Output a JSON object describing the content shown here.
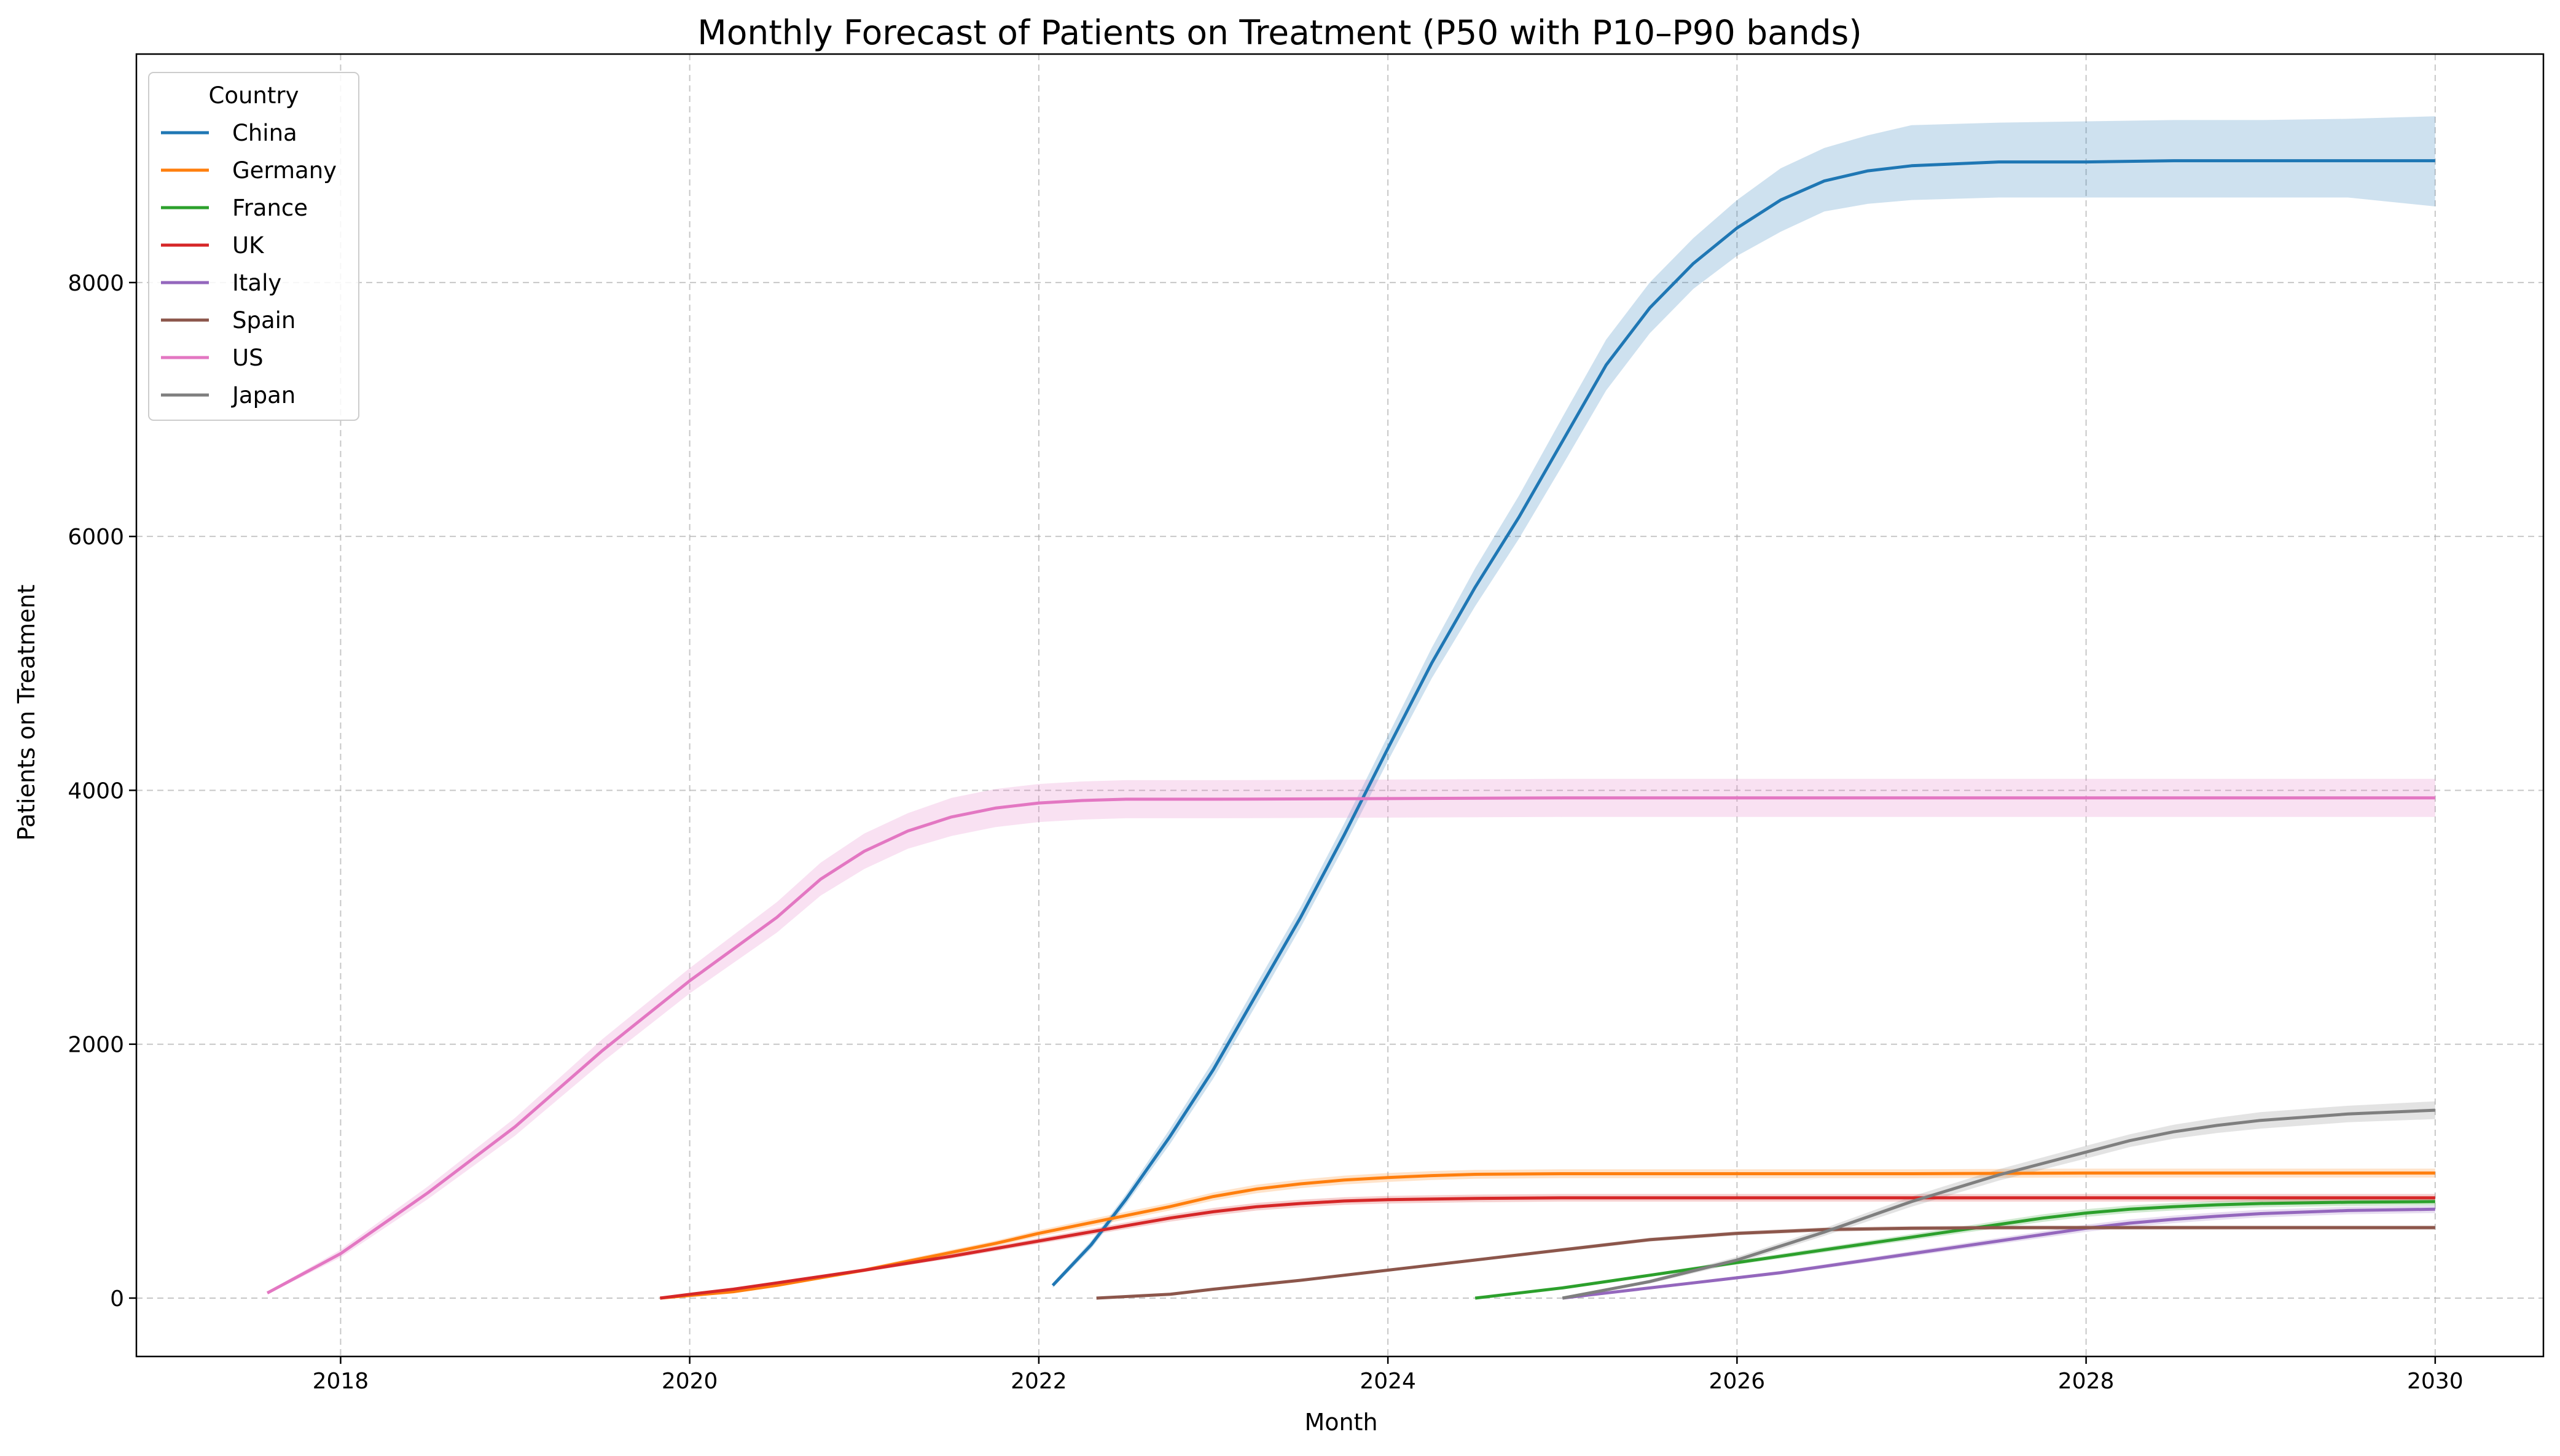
{
  "chart_data": {
    "type": "line",
    "title": "Monthly Forecast of Patients on Treatment (P50 with P10–P90 bands)",
    "xlabel": "Month",
    "ylabel": "Patients on Treatment",
    "xlim": [
      2016.83,
      2030.62
    ],
    "ylim": [
      -460,
      9800
    ],
    "x_ticks": [
      2018,
      2020,
      2022,
      2024,
      2026,
      2028,
      2030
    ],
    "x_tick_labels": [
      "2018",
      "2020",
      "2022",
      "2024",
      "2026",
      "2028",
      "2030"
    ],
    "y_ticks": [
      0,
      2000,
      4000,
      6000,
      8000
    ],
    "y_tick_labels": [
      "0",
      "2000",
      "4000",
      "6000",
      "8000"
    ],
    "grid": true,
    "legend": {
      "title": "Country",
      "placement": "top-left"
    },
    "series": [
      {
        "name": "China",
        "color": "#1f77b4",
        "x": [
          2022.08,
          2022.3,
          2022.5,
          2022.75,
          2023.0,
          2023.25,
          2023.5,
          2023.75,
          2024.0,
          2024.25,
          2024.5,
          2024.75,
          2025.0,
          2025.25,
          2025.5,
          2025.75,
          2026.0,
          2026.25,
          2026.5,
          2026.75,
          2027.0,
          2027.5,
          2028.0,
          2028.5,
          2029.0,
          2029.5,
          2030.0
        ],
        "p50": [
          100,
          420,
          780,
          1270,
          1800,
          2400,
          3000,
          3650,
          4330,
          5000,
          5600,
          6150,
          6750,
          7350,
          7800,
          8150,
          8430,
          8650,
          8800,
          8880,
          8920,
          8950,
          8950,
          8960,
          8960,
          8960,
          8960
        ],
        "p10": [
          80,
          390,
          740,
          1210,
          1730,
          2320,
          2920,
          3560,
          4230,
          4880,
          5450,
          5980,
          6560,
          7150,
          7600,
          7950,
          8210,
          8400,
          8560,
          8620,
          8650,
          8670,
          8670,
          8670,
          8670,
          8670,
          8600
        ],
        "p90": [
          120,
          450,
          820,
          1330,
          1870,
          2480,
          3080,
          3740,
          4430,
          5120,
          5750,
          6320,
          6940,
          7550,
          8000,
          8350,
          8650,
          8900,
          9060,
          9160,
          9240,
          9260,
          9270,
          9280,
          9280,
          9290,
          9310
        ]
      },
      {
        "name": "Germany",
        "color": "#ff7f0e",
        "x": [
          2019.83,
          2020.0,
          2020.25,
          2020.5,
          2020.75,
          2021.0,
          2021.25,
          2021.5,
          2021.75,
          2022.0,
          2022.25,
          2022.5,
          2022.75,
          2023.0,
          2023.25,
          2023.5,
          2023.75,
          2024.0,
          2024.25,
          2024.5,
          2025.0,
          2026.0,
          2027.0,
          2028.0,
          2029.0,
          2030.0
        ],
        "p50": [
          0,
          20,
          50,
          100,
          160,
          220,
          290,
          360,
          430,
          510,
          580,
          650,
          720,
          800,
          860,
          900,
          930,
          950,
          965,
          975,
          980,
          980,
          980,
          985,
          985,
          985
        ],
        "p10": [
          0,
          15,
          42,
          90,
          148,
          205,
          272,
          340,
          408,
          485,
          552,
          620,
          690,
          768,
          826,
          866,
          895,
          915,
          930,
          940,
          945,
          945,
          945,
          950,
          950,
          950
        ],
        "p90": [
          0,
          25,
          58,
          110,
          172,
          235,
          308,
          380,
          452,
          535,
          608,
          680,
          750,
          832,
          894,
          934,
          965,
          985,
          1000,
          1010,
          1015,
          1015,
          1015,
          1020,
          1020,
          1020
        ]
      },
      {
        "name": "France",
        "color": "#2ca02c",
        "x": [
          2024.5,
          2024.75,
          2025.0,
          2025.25,
          2025.5,
          2025.75,
          2026.0,
          2026.25,
          2026.5,
          2026.75,
          2027.0,
          2027.25,
          2027.5,
          2027.75,
          2028.0,
          2028.25,
          2028.5,
          2028.75,
          2029.0,
          2029.5,
          2030.0
        ],
        "p50": [
          0,
          40,
          80,
          130,
          180,
          230,
          280,
          330,
          380,
          430,
          480,
          530,
          580,
          630,
          670,
          700,
          720,
          735,
          745,
          755,
          760
        ],
        "p10": [
          0,
          34,
          72,
          120,
          168,
          216,
          264,
          312,
          360,
          408,
          456,
          504,
          552,
          600,
          640,
          670,
          690,
          705,
          715,
          725,
          730
        ],
        "p90": [
          0,
          46,
          88,
          140,
          192,
          244,
          296,
          348,
          400,
          452,
          504,
          556,
          608,
          660,
          700,
          730,
          750,
          765,
          775,
          785,
          790
        ]
      },
      {
        "name": "UK",
        "color": "#d62728",
        "x": [
          2019.83,
          2020.0,
          2020.25,
          2020.5,
          2020.75,
          2021.0,
          2021.25,
          2021.5,
          2021.75,
          2022.0,
          2022.25,
          2022.5,
          2022.75,
          2023.0,
          2023.25,
          2023.5,
          2023.75,
          2024.0,
          2024.5,
          2025.0,
          2026.0,
          2027.0,
          2028.0,
          2029.0,
          2030.0
        ],
        "p50": [
          0,
          30,
          70,
          120,
          170,
          220,
          275,
          330,
          390,
          450,
          510,
          570,
          630,
          680,
          720,
          745,
          765,
          775,
          785,
          790,
          790,
          790,
          790,
          790,
          790
        ],
        "p10": [
          0,
          25,
          62,
          110,
          158,
          206,
          259,
          312,
          370,
          428,
          486,
          544,
          602,
          650,
          690,
          715,
          735,
          745,
          755,
          760,
          760,
          760,
          760,
          760,
          760
        ],
        "p90": [
          0,
          35,
          78,
          130,
          182,
          234,
          291,
          348,
          410,
          472,
          534,
          596,
          658,
          710,
          750,
          775,
          795,
          805,
          815,
          820,
          820,
          820,
          820,
          820,
          820
        ]
      },
      {
        "name": "Italy",
        "color": "#9467bd",
        "x": [
          2025.0,
          2025.25,
          2025.5,
          2025.75,
          2026.0,
          2026.25,
          2026.5,
          2026.75,
          2027.0,
          2027.25,
          2027.5,
          2027.75,
          2028.0,
          2028.25,
          2028.5,
          2028.75,
          2029.0,
          2029.5,
          2030.0
        ],
        "p50": [
          0,
          40,
          80,
          120,
          160,
          200,
          250,
          300,
          350,
          400,
          450,
          500,
          550,
          590,
          620,
          645,
          665,
          690,
          700
        ],
        "p10": [
          0,
          35,
          72,
          110,
          148,
          186,
          234,
          282,
          330,
          378,
          426,
          474,
          522,
          560,
          590,
          615,
          635,
          660,
          670
        ],
        "p90": [
          0,
          45,
          88,
          130,
          172,
          214,
          266,
          318,
          370,
          422,
          474,
          526,
          578,
          620,
          650,
          675,
          695,
          720,
          730
        ]
      },
      {
        "name": "Spain",
        "color": "#8c564b",
        "x": [
          2022.33,
          2022.75,
          2023.0,
          2023.5,
          2024.0,
          2024.5,
          2025.0,
          2025.5,
          2026.0,
          2026.5,
          2027.0,
          2027.5,
          2028.0,
          2028.5,
          2029.0,
          2029.5,
          2030.0
        ],
        "p50": [
          0,
          30,
          70,
          140,
          220,
          300,
          380,
          460,
          510,
          540,
          550,
          555,
          555,
          555,
          555,
          555,
          555
        ],
        "p10": [
          0,
          26,
          64,
          132,
          210,
          288,
          366,
          445,
          494,
          523,
          533,
          538,
          538,
          538,
          538,
          538,
          538
        ],
        "p90": [
          0,
          34,
          76,
          148,
          230,
          312,
          394,
          475,
          526,
          557,
          567,
          572,
          572,
          572,
          572,
          572,
          572
        ]
      },
      {
        "name": "US",
        "color": "#e377c2",
        "x": [
          2017.58,
          2018.0,
          2018.5,
          2019.0,
          2019.5,
          2020.0,
          2020.5,
          2020.75,
          2021.0,
          2021.25,
          2021.5,
          2021.75,
          2022.0,
          2022.25,
          2022.5,
          2023.0,
          2024.0,
          2025.0,
          2026.0,
          2027.0,
          2028.0,
          2029.0,
          2030.0
        ],
        "p50": [
          40,
          350,
          830,
          1350,
          1950,
          2500,
          3000,
          3300,
          3520,
          3680,
          3790,
          3860,
          3900,
          3920,
          3930,
          3930,
          3935,
          3940,
          3940,
          3940,
          3940,
          3940,
          3940
        ],
        "p10": [
          30,
          320,
          780,
          1280,
          1860,
          2400,
          2880,
          3170,
          3380,
          3540,
          3640,
          3710,
          3750,
          3770,
          3780,
          3780,
          3785,
          3790,
          3790,
          3790,
          3790,
          3790,
          3790
        ],
        "p90": [
          50,
          380,
          880,
          1420,
          2040,
          2600,
          3120,
          3430,
          3660,
          3820,
          3940,
          4010,
          4050,
          4070,
          4080,
          4080,
          4085,
          4090,
          4090,
          4090,
          4090,
          4090,
          4090
        ]
      },
      {
        "name": "Japan",
        "color": "#7f7f7f",
        "x": [
          2025.0,
          2025.5,
          2026.0,
          2026.5,
          2027.0,
          2027.5,
          2028.0,
          2028.25,
          2028.5,
          2028.75,
          2029.0,
          2029.5,
          2030.0
        ],
        "p50": [
          0,
          130,
          300,
          520,
          760,
          970,
          1150,
          1240,
          1310,
          1360,
          1400,
          1450,
          1480
        ],
        "p10": [
          0,
          115,
          275,
          490,
          720,
          925,
          1100,
          1190,
          1255,
          1300,
          1335,
          1385,
          1410
        ],
        "p90": [
          0,
          145,
          325,
          550,
          800,
          1015,
          1200,
          1290,
          1365,
          1420,
          1465,
          1515,
          1550
        ]
      }
    ]
  }
}
